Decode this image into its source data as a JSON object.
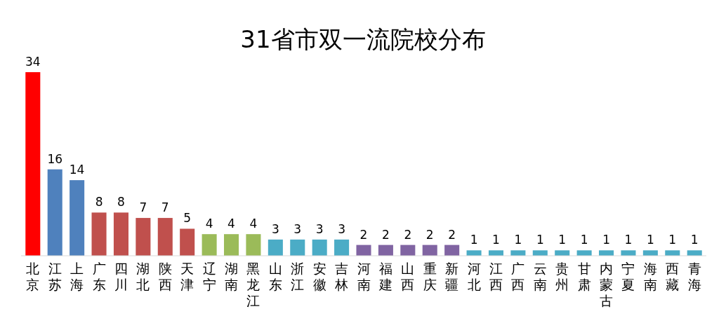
{
  "chart_data": {
    "type": "bar",
    "title": "31省市双一流院校分布",
    "categories": [
      "北京",
      "江苏",
      "上海",
      "广东",
      "四川",
      "湖北",
      "陕西",
      "天津",
      "辽宁",
      "湖南",
      "黑龙江",
      "山东",
      "浙江",
      "安徽",
      "吉林",
      "河南",
      "福建",
      "山西",
      "重庆",
      "新疆",
      "河北",
      "江西",
      "广西",
      "云南",
      "贵州",
      "甘肃",
      "内蒙古",
      "宁夏",
      "海南",
      "西藏",
      "青海"
    ],
    "values": [
      34,
      16,
      14,
      8,
      8,
      7,
      7,
      5,
      4,
      4,
      4,
      3,
      3,
      3,
      3,
      2,
      2,
      2,
      2,
      2,
      1,
      1,
      1,
      1,
      1,
      1,
      1,
      1,
      1,
      1,
      1
    ],
    "colors": [
      "#ff0000",
      "#4f81bd",
      "#4f81bd",
      "#c0504d",
      "#c0504d",
      "#c0504d",
      "#c0504d",
      "#c0504d",
      "#9bbb59",
      "#9bbb59",
      "#9bbb59",
      "#4bacc6",
      "#4bacc6",
      "#4bacc6",
      "#4bacc6",
      "#8064a2",
      "#8064a2",
      "#8064a2",
      "#8064a2",
      "#8064a2",
      "#4bacc6",
      "#4bacc6",
      "#4bacc6",
      "#4bacc6",
      "#4bacc6",
      "#4bacc6",
      "#4bacc6",
      "#4bacc6",
      "#4bacc6",
      "#4bacc6",
      "#4bacc6"
    ],
    "data_labels": true
  }
}
